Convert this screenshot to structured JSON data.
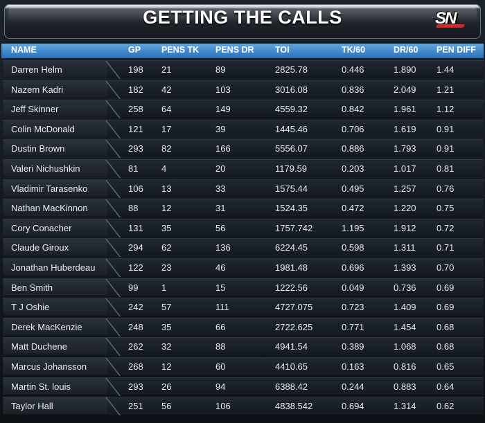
{
  "header": {
    "title": "GETTING THE CALLS",
    "logo": "SN"
  },
  "chart_data": {
    "type": "table",
    "columns": [
      "NAME",
      "GP",
      "PENS TK",
      "PENS DR",
      "TOI",
      "TK/60",
      "DR/60",
      "PEN DIFF"
    ],
    "rows": [
      [
        "Darren Helm",
        "198",
        "21",
        "89",
        "2825.78",
        "0.446",
        "1.890",
        "1.44"
      ],
      [
        "Nazem Kadri",
        "182",
        "42",
        "103",
        "3016.08",
        "0.836",
        "2.049",
        "1.21"
      ],
      [
        "Jeff Skinner",
        "258",
        "64",
        "149",
        "4559.32",
        "0.842",
        "1.961",
        "1.12"
      ],
      [
        "Colin McDonald",
        "121",
        "17",
        "39",
        "1445.46",
        "0.706",
        "1.619",
        "0.91"
      ],
      [
        "Dustin Brown",
        "293",
        "82",
        "166",
        "5556.07",
        "0.886",
        "1.793",
        "0.91"
      ],
      [
        "Valeri Nichushkin",
        "81",
        "4",
        "20",
        "1179.59",
        "0.203",
        "1.017",
        "0.81"
      ],
      [
        "Vladimir Tarasenko",
        "106",
        "13",
        "33",
        "1575.44",
        "0.495",
        "1.257",
        "0.76"
      ],
      [
        "Nathan MacKinnon",
        "88",
        "12",
        "31",
        "1524.35",
        "0.472",
        "1.220",
        "0.75"
      ],
      [
        "Cory Conacher",
        "131",
        "35",
        "56",
        "1757.742",
        "1.195",
        "1.912",
        "0.72"
      ],
      [
        "Claude Giroux",
        "294",
        "62",
        "136",
        "6224.45",
        "0.598",
        "1.311",
        "0.71"
      ],
      [
        "Jonathan Huberdeau",
        "122",
        "23",
        "46",
        "1981.48",
        "0.696",
        "1.393",
        "0.70"
      ],
      [
        "Ben Smith",
        "99",
        "1",
        "15",
        "1222.56",
        "0.049",
        "0.736",
        "0.69"
      ],
      [
        "T J  Oshie",
        "242",
        "57",
        "111",
        "4727.075",
        "0.723",
        "1.409",
        "0.69"
      ],
      [
        "Derek MacKenzie",
        "248",
        "35",
        "66",
        "2722.625",
        "0.771",
        "1.454",
        "0.68"
      ],
      [
        "Matt Duchene",
        "262",
        "32",
        "88",
        "4941.54",
        "0.389",
        "1.068",
        "0.68"
      ],
      [
        "Marcus Johansson",
        "268",
        "12",
        "60",
        "4410.65",
        "0.163",
        "0.816",
        "0.65"
      ],
      [
        "Martin St.  louis",
        "293",
        "26",
        "94",
        "6388.42",
        "0.244",
        "0.883",
        "0.64"
      ],
      [
        "Taylor Hall",
        "251",
        "56",
        "106",
        "4838.542",
        "0.694",
        "1.314",
        "0.62"
      ]
    ]
  }
}
